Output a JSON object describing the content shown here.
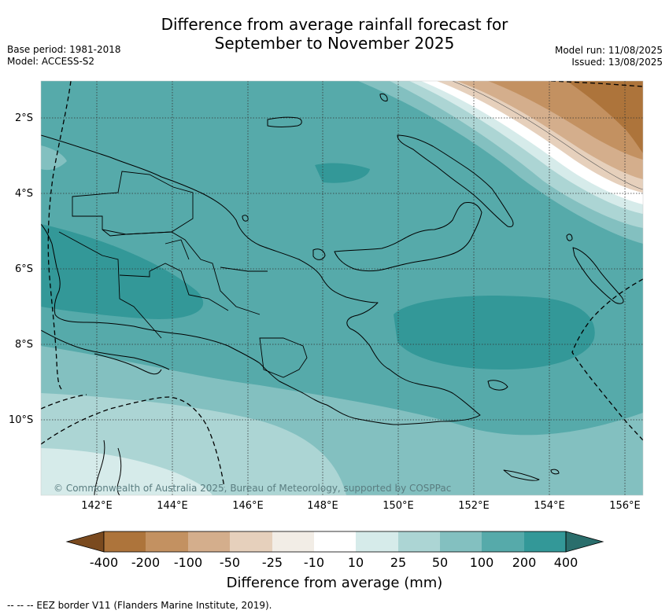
{
  "title_line1": "Difference from average rainfall forecast for",
  "title_line2": "September to November 2025",
  "base_period": "Base period: 1981-2018",
  "model": "Model: ACCESS-S2",
  "model_run": "Model run: 11/08/2025",
  "issued": "Issued: 13/08/2025",
  "copyright": "© Commonwealth of Australia 2025, Bureau of Meteorology, supported by COSPPac",
  "lat_labels": [
    "2°S",
    "4°S",
    "6°S",
    "8°S",
    "10°S"
  ],
  "lon_labels": [
    "142°E",
    "144°E",
    "146°E",
    "148°E",
    "150°E",
    "152°E",
    "154°E",
    "156°E"
  ],
  "colorbar": {
    "title": "Difference from average (mm)",
    "labels": [
      "-400",
      "-200",
      "-100",
      "-50",
      "-25",
      "-10",
      "10",
      "25",
      "50",
      "100",
      "200",
      "400"
    ],
    "colors": [
      "#7a4a1f",
      "#ad743b",
      "#c39161",
      "#d4ae8c",
      "#e6d0bc",
      "#f2ede6",
      "#ffffff",
      "#d6ebea",
      "#acd5d4",
      "#83c0c0",
      "#56aaaa",
      "#339898",
      "#2a6e6c"
    ]
  },
  "legend_note": "--  --  -- EEZ border V11 (Flanders Marine Institute, 2019)."
}
